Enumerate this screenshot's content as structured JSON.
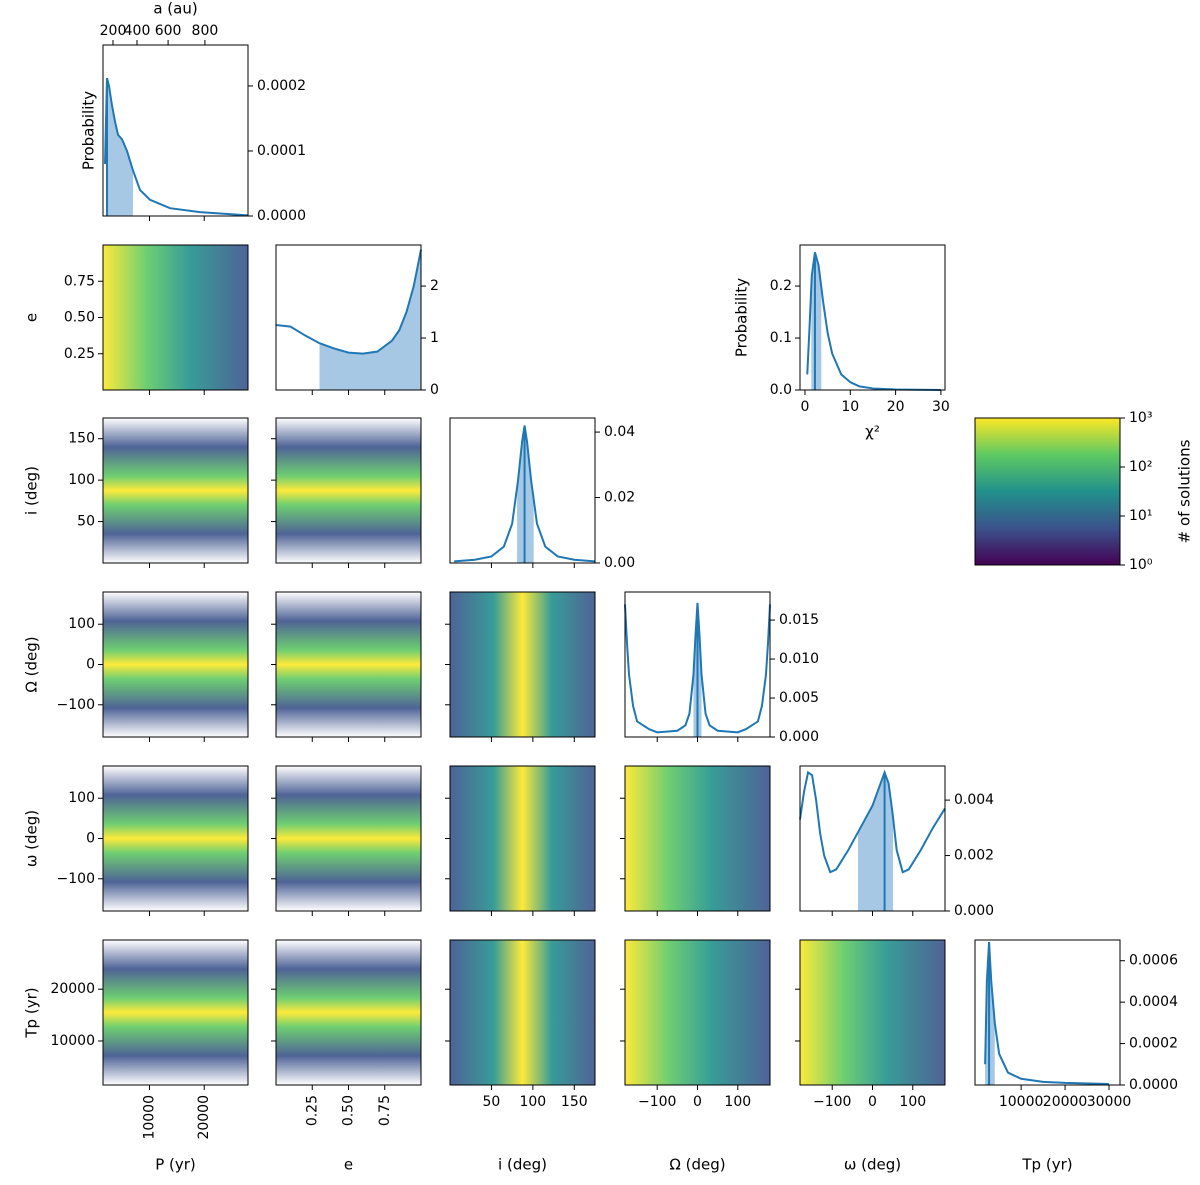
{
  "chart_data": {
    "type": "corner",
    "top_axis": {
      "label": "a (au)",
      "scale": "power",
      "exponent": 1.5,
      "xlim": [
        77,
        1006
      ],
      "xticks": [
        200,
        400,
        600,
        800
      ]
    },
    "variables": [
      {
        "label": "P (yr)",
        "lim": [
          1500,
          28000
        ],
        "ticks": [
          10000,
          20000
        ],
        "vertical_ticks": true
      },
      {
        "label": "e",
        "lim": [
          0,
          1
        ],
        "ticks": [
          0.25,
          {
            "value": 0.5,
            "label": "0.50"
          },
          0.75
        ],
        "vertical_ticks": true
      },
      {
        "label": "i (deg)",
        "lim": [
          0,
          175
        ],
        "ticks": [
          50,
          100,
          150
        ]
      },
      {
        "label": "Ω (deg)",
        "lim": [
          -180,
          180
        ],
        "ticks": [
          {
            "value": -100,
            "label": "−100"
          },
          0,
          100
        ]
      },
      {
        "label": "ω (deg)",
        "lim": [
          -180,
          180
        ],
        "ticks": [
          {
            "value": -100,
            "label": "−100"
          },
          0,
          100
        ]
      },
      {
        "label": "Tp (yr)",
        "lim": [
          1500,
          29500
        ],
        "ticks": [
          10000,
          20000
        ]
      }
    ],
    "color": "#1f77b4",
    "shade_color": "#a6c8e4",
    "diagonal": [
      {
        "ylabel": "Probability",
        "ylim": [
          0,
          0.000263
        ],
        "yticks": [
          {
            "value": 0,
            "label": "0.0000"
          },
          0.0001,
          0.0002
        ],
        "x": [
          1866,
          2231,
          2600,
          3145,
          3700,
          4241,
          4972,
          5886,
          6983,
          8262,
          10090,
          13745,
          19228,
          28000
        ],
        "y": [
          8e-05,
          0.000212,
          0.0002,
          0.00017,
          0.000145,
          0.000125,
          0.000118,
          0.0001,
          7e-05,
          4e-05,
          2.5e-05,
          1.2e-05,
          6e-06,
          1e-06
        ],
        "interval": [
          2049,
          6983
        ],
        "median": 2231
      },
      {
        "ylim": [
          0,
          2.79
        ],
        "yticks": [
          0,
          1,
          2
        ],
        "x": [
          0,
          0.1,
          0.2,
          0.3,
          0.4,
          0.5,
          0.6,
          0.7,
          0.8,
          0.85,
          0.9,
          0.95,
          1.0
        ],
        "y": [
          1.25,
          1.22,
          1.05,
          0.9,
          0.8,
          0.72,
          0.7,
          0.74,
          0.95,
          1.15,
          1.5,
          2.0,
          2.7
        ],
        "interval": [
          0.3,
          1.0
        ]
      },
      {
        "ylim": [
          0,
          0.0443
        ],
        "yticks": [
          {
            "value": 0,
            "label": "0.00"
          },
          0.02,
          0.04
        ],
        "x": [
          5,
          30,
          50,
          65,
          75,
          82,
          87,
          90,
          93,
          98,
          105,
          115,
          130,
          150,
          175
        ],
        "y": [
          0.0005,
          0.001,
          0.002,
          0.005,
          0.012,
          0.025,
          0.037,
          0.042,
          0.037,
          0.025,
          0.012,
          0.005,
          0.002,
          0.001,
          0.0005
        ],
        "interval": [
          81,
          101
        ],
        "median": 90
      },
      {
        "ylim": [
          0,
          0.0186
        ],
        "yticks": [
          {
            "value": 0,
            "label": "0.000"
          },
          0.005,
          {
            "value": 0.01,
            "label": "0.010"
          },
          0.015
        ],
        "x": [
          -180,
          -175,
          -170,
          -160,
          -150,
          -120,
          -100,
          -50,
          -30,
          -20,
          -10,
          -5,
          0,
          5,
          10,
          20,
          30,
          50,
          100,
          120,
          150,
          160,
          170,
          175,
          180
        ],
        "y": [
          0.017,
          0.012,
          0.008,
          0.004,
          0.002,
          0.001,
          0.0006,
          0.0008,
          0.0015,
          0.003,
          0.008,
          0.013,
          0.0172,
          0.013,
          0.008,
          0.003,
          0.0015,
          0.0008,
          0.0006,
          0.001,
          0.002,
          0.004,
          0.008,
          0.012,
          0.017
        ],
        "interval": [
          -10,
          10
        ],
        "median": 0
      },
      {
        "ylim": [
          0,
          0.00523
        ],
        "yticks": [
          {
            "value": 0,
            "label": "0.000"
          },
          0.002,
          0.004
        ],
        "x": [
          -180,
          -170,
          -160,
          -150,
          -140,
          -130,
          -120,
          -105,
          -90,
          -60,
          -30,
          0,
          20,
          30,
          40,
          50,
          60,
          75,
          90,
          120,
          150,
          180
        ],
        "y": [
          0.0033,
          0.0043,
          0.005,
          0.0049,
          0.004,
          0.0028,
          0.002,
          0.0014,
          0.0015,
          0.0022,
          0.003,
          0.0038,
          0.0046,
          0.005,
          0.0046,
          0.0035,
          0.0022,
          0.0014,
          0.0015,
          0.0022,
          0.003,
          0.0037
        ],
        "interval": [
          -36,
          51
        ],
        "median": 30
      },
      {
        "xlim": [
          -500,
          32500
        ],
        "xticks": [
          10000,
          20000,
          30000
        ],
        "ylim": [
          0,
          0.0007
        ],
        "yticks": [
          {
            "value": 0,
            "label": "0.0000"
          },
          0.0002,
          0.0004,
          0.0006
        ],
        "x": [
          1800,
          2200,
          2700,
          3200,
          4000,
          5000,
          7000,
          10000,
          15000,
          20000,
          30000
        ],
        "y": [
          0.0001,
          0.0005,
          0.00069,
          0.0005,
          0.0003,
          0.00015,
          6e-05,
          3e-05,
          1.5e-05,
          1e-05,
          5e-06
        ],
        "interval": [
          1800,
          4000
        ],
        "median": 2700
      }
    ],
    "chi2": {
      "ylabel": "Probability",
      "xlabel": "χ²",
      "xlim": [
        -1.1,
        30.9
      ],
      "xticks": [
        0,
        10,
        20,
        30
      ],
      "ylim": [
        0,
        0.279
      ],
      "yticks": [
        {
          "value": 0,
          "label": "0.0"
        },
        0.1,
        0.2
      ],
      "x": [
        0.5,
        1,
        1.5,
        2.2,
        3,
        4,
        5,
        6,
        8,
        10,
        12,
        15,
        20,
        30
      ],
      "y": [
        0.03,
        0.12,
        0.22,
        0.265,
        0.24,
        0.17,
        0.11,
        0.07,
        0.03,
        0.015,
        0.007,
        0.003,
        0.001,
        0
      ],
      "interval": [
        1.4,
        3.6
      ],
      "median": 2.2
    },
    "colorbar": {
      "label": "# of solutions",
      "log": true,
      "lim": [
        1,
        1000
      ],
      "ticks": [
        {
          "value": 1,
          "label": "10⁰"
        },
        {
          "value": 10,
          "label": "10¹"
        },
        {
          "value": 100,
          "label": "10²"
        },
        {
          "value": 1000,
          "label": "10³"
        }
      ]
    }
  }
}
